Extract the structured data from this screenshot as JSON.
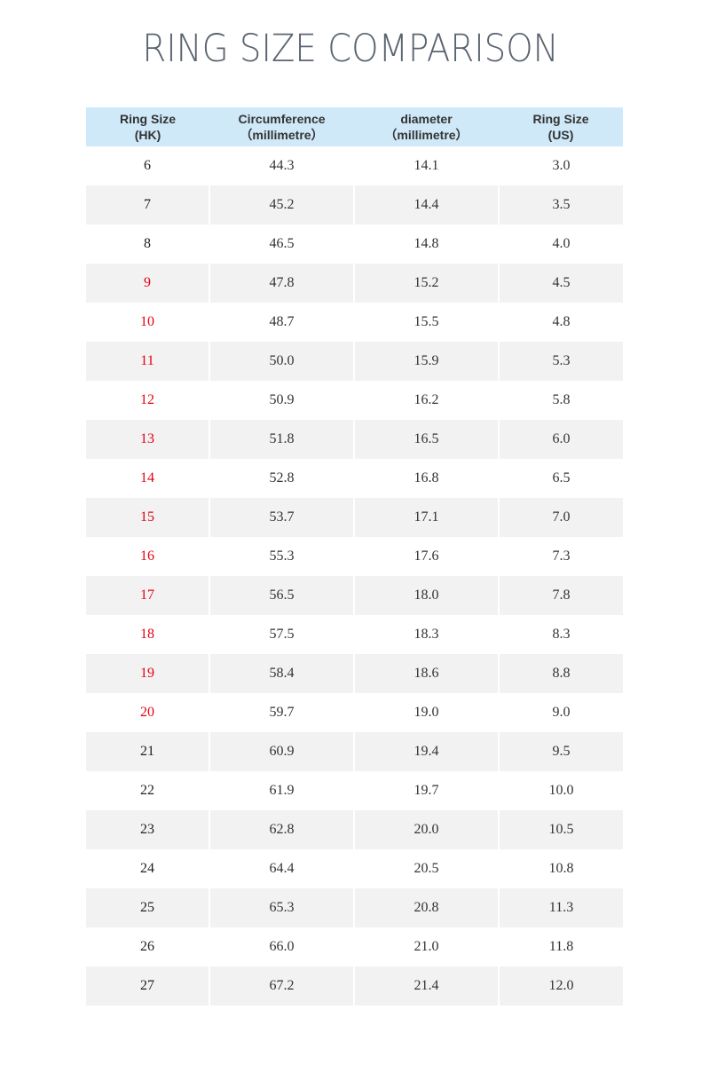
{
  "header": {
    "title": "RING SIZE COMPARISON"
  },
  "table": {
    "columns": [
      "Ring Size\n(HK)",
      "Circumference\n（millimetre）",
      "diameter\n（millimetre）",
      "Ring Size\n(US)"
    ],
    "header_color": "#cfe9f8",
    "rows": [
      {
        "cells": [
          "6",
          "44.3",
          "14.1",
          "3.0"
        ],
        "color": "#222222"
      },
      {
        "cells": [
          "7",
          "45.2",
          "14.4",
          "3.5"
        ],
        "color": "#222222"
      },
      {
        "cells": [
          "8",
          "46.5",
          "14.8",
          "4.0"
        ],
        "color": "#222222"
      },
      {
        "cells": [
          "9",
          "47.8",
          "15.2",
          "4.5"
        ],
        "color": "#e60012"
      },
      {
        "cells": [
          "10",
          "48.7",
          "15.5",
          "4.8"
        ],
        "color": "#e60012"
      },
      {
        "cells": [
          "11",
          "50.0",
          "15.9",
          "5.3"
        ],
        "color": "#e60012"
      },
      {
        "cells": [
          "12",
          "50.9",
          "16.2",
          "5.8"
        ],
        "color": "#e60012"
      },
      {
        "cells": [
          "13",
          "51.8",
          "16.5",
          "6.0"
        ],
        "color": "#e60012"
      },
      {
        "cells": [
          "14",
          "52.8",
          "16.8",
          "6.5"
        ],
        "color": "#e60012"
      },
      {
        "cells": [
          "15",
          "53.7",
          "17.1",
          "7.0"
        ],
        "color": "#e60012"
      },
      {
        "cells": [
          "16",
          "55.3",
          "17.6",
          "7.3"
        ],
        "color": "#e60012"
      },
      {
        "cells": [
          "17",
          "56.5",
          "18.0",
          "7.8"
        ],
        "color": "#e60012"
      },
      {
        "cells": [
          "18",
          "57.5",
          "18.3",
          "8.3"
        ],
        "color": "#e60012"
      },
      {
        "cells": [
          "19",
          "58.4",
          "18.6",
          "8.8"
        ],
        "color": "#e60012"
      },
      {
        "cells": [
          "20",
          "59.7",
          "19.0",
          "9.0"
        ],
        "color": "#e60012"
      },
      {
        "cells": [
          "21",
          "60.9",
          "19.4",
          "9.5"
        ],
        "color": "#222222"
      },
      {
        "cells": [
          "22",
          "61.9",
          "19.7",
          "10.0"
        ],
        "color": "#222222"
      },
      {
        "cells": [
          "23",
          "62.8",
          "20.0",
          "10.5"
        ],
        "color": "#222222"
      },
      {
        "cells": [
          "24",
          "64.4",
          "20.5",
          "10.8"
        ],
        "color": "#222222"
      },
      {
        "cells": [
          "25",
          "65.3",
          "20.8",
          "11.3"
        ],
        "color": "#222222"
      },
      {
        "cells": [
          "26",
          "66.0",
          "21.0",
          "11.8"
        ],
        "color": "#222222"
      },
      {
        "cells": [
          "27",
          "67.2",
          "21.4",
          "12.0"
        ],
        "color": "#222222"
      }
    ]
  }
}
